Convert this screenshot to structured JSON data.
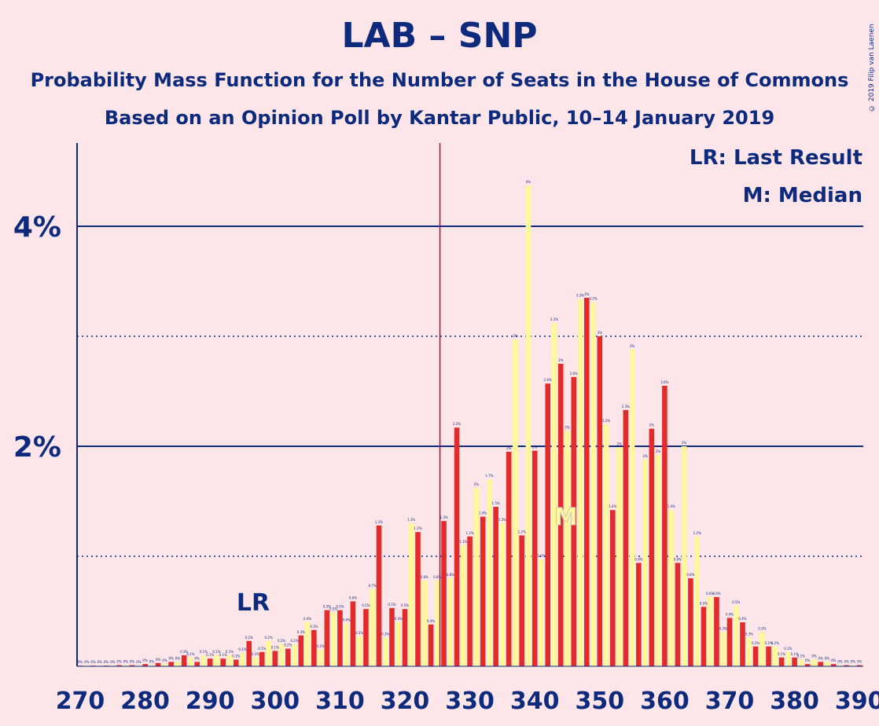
{
  "chart_data": {
    "type": "bar",
    "title": "LAB – SNP",
    "subtitle": "Probability Mass Function for the Number of Seats in the House of Commons",
    "subtitle2": "Based on an Opinion Poll by Kantar Public, 10–14 January 2019",
    "copyright": "© 2019 Filip van Laenen",
    "legend": [
      "LR: Last Result",
      "M: Median"
    ],
    "lr_label": "LR",
    "median_label": "M",
    "last_result": 297,
    "median": 345,
    "majority_line": 326,
    "x_ticks": [
      270,
      280,
      290,
      300,
      310,
      320,
      330,
      340,
      350,
      360,
      370,
      380,
      390
    ],
    "y_ticks": [
      {
        "value": 2,
        "label": "2%"
      },
      {
        "value": 4,
        "label": "4%"
      }
    ],
    "ylim": [
      0,
      4.7
    ],
    "x": [
      270,
      271,
      272,
      273,
      274,
      275,
      276,
      277,
      278,
      279,
      280,
      281,
      282,
      283,
      284,
      285,
      286,
      287,
      288,
      289,
      290,
      291,
      292,
      293,
      294,
      295,
      296,
      297,
      298,
      299,
      300,
      301,
      302,
      303,
      304,
      305,
      306,
      307,
      308,
      309,
      310,
      311,
      312,
      313,
      314,
      315,
      316,
      317,
      318,
      319,
      320,
      321,
      322,
      323,
      324,
      325,
      326,
      327,
      328,
      329,
      330,
      331,
      332,
      333,
      334,
      335,
      336,
      337,
      338,
      339,
      340,
      341,
      342,
      343,
      344,
      345,
      346,
      347,
      348,
      349,
      350,
      351,
      352,
      353,
      354,
      355,
      356,
      357,
      358,
      359,
      360,
      361,
      362,
      363,
      364,
      365,
      366,
      367,
      368,
      369,
      370,
      371,
      372,
      373,
      374,
      375,
      376,
      377,
      378,
      379,
      380,
      381,
      382,
      383,
      384,
      385,
      386,
      387,
      388,
      389,
      390
    ],
    "values": [
      0,
      0,
      0,
      0,
      0,
      0,
      0.01,
      0.01,
      0.01,
      0,
      0.02,
      0.01,
      0.03,
      0.02,
      0.04,
      0.04,
      0.1,
      0.08,
      0.04,
      0.1,
      0.07,
      0.1,
      0.07,
      0.1,
      0.06,
      0.12,
      0.23,
      0.08,
      0.13,
      0.23,
      0.14,
      0.2,
      0.16,
      0.2,
      0.28,
      0.4,
      0.33,
      0.15,
      0.51,
      0.49,
      0.51,
      0.39,
      0.59,
      0.27,
      0.52,
      0.7,
      1.28,
      0.26,
      0.53,
      0.4,
      0.52,
      1.3,
      1.22,
      0.78,
      0.38,
      0.78,
      1.32,
      0.8,
      2.17,
      1.1,
      1.18,
      1.62,
      1.36,
      1.7,
      1.45,
      1.3,
      1.95,
      2.97,
      1.19,
      4.37,
      1.96,
      0.97,
      2.57,
      3.12,
      2.75,
      2.14,
      2.63,
      3.34,
      3.35,
      3.31,
      3.0,
      2.2,
      1.42,
      1.99,
      2.33,
      2.88,
      0.94,
      1.88,
      2.16,
      1.92,
      2.55,
      1.42,
      0.94,
      2.0,
      0.8,
      1.18,
      0.54,
      0.63,
      0.63,
      0.31,
      0.44,
      0.55,
      0.4,
      0.26,
      0.18,
      0.31,
      0.18,
      0.18,
      0.08,
      0.13,
      0.08,
      0.06,
      0.02,
      0.06,
      0.04,
      0.04,
      0.02,
      0.01,
      0.01,
      0.01,
      0.01
    ],
    "data_labels": [
      "0%",
      "0%",
      "0%",
      "0%",
      "0%",
      "0%",
      "0%",
      "0%",
      "0%",
      "0%",
      "0%",
      "0%",
      "0%",
      "0%",
      "0%",
      "0%",
      "0.1%",
      "0.1%",
      "0%",
      "0.1%",
      "0.1%",
      "0.1%",
      "0.1%",
      "0.1%",
      "0.1%",
      "0.1%",
      "0.2%",
      "0.1%",
      "0.1%",
      "0.2%",
      "0.1%",
      "0.2%",
      "0.2%",
      "0.2%",
      "0.3%",
      "0.4%",
      "0.3%",
      "0.2%",
      "0.5%",
      "0.5%",
      "0.5%",
      "0.4%",
      "0.6%",
      "0.3%",
      "0.5%",
      "0.7%",
      "1.3%",
      "0.3%",
      "0.5%",
      "0.4%",
      "0.5%",
      "1.3%",
      "1.2%",
      "0.8%",
      "0.4%",
      "0.8%",
      "1.3%",
      "0.8%",
      "2.2%",
      "1.1%",
      "1.2%",
      "2%",
      "1.4%",
      "1.7%",
      "1.5%",
      "1.3%",
      "2%",
      "3%",
      "1.2%",
      "4%",
      "2%",
      "1.0%",
      "2.6%",
      "3.1%",
      "3%",
      "2%",
      "2.6%",
      "3.3%",
      "3%",
      "3.3%",
      "3%",
      "2.2%",
      "1.4%",
      "2%",
      "2.3%",
      "3%",
      "0.9%",
      "2%",
      "2%",
      "2%",
      "2.6%",
      "1.4%",
      "0.9%",
      "2%",
      "0.8%",
      "1.2%",
      "0.5%",
      "0.6%",
      "0.6%",
      "0.3%",
      "0.4%",
      "0.5%",
      "0.4%",
      "0.3%",
      "0.2%",
      "0.3%",
      "0.2%",
      "0.2%",
      "0.1%",
      "0.1%",
      "0.1%",
      "0.1%",
      "0%",
      "0%",
      "0%",
      "0%",
      "0%",
      "0%",
      "0%",
      "0%",
      "0%"
    ],
    "colors": {
      "background": "#fde6e9",
      "text": "#0d2a7d",
      "bar_even": "#e32b2b",
      "bar_odd": "#fff799",
      "median_line": "#cc0033"
    }
  }
}
